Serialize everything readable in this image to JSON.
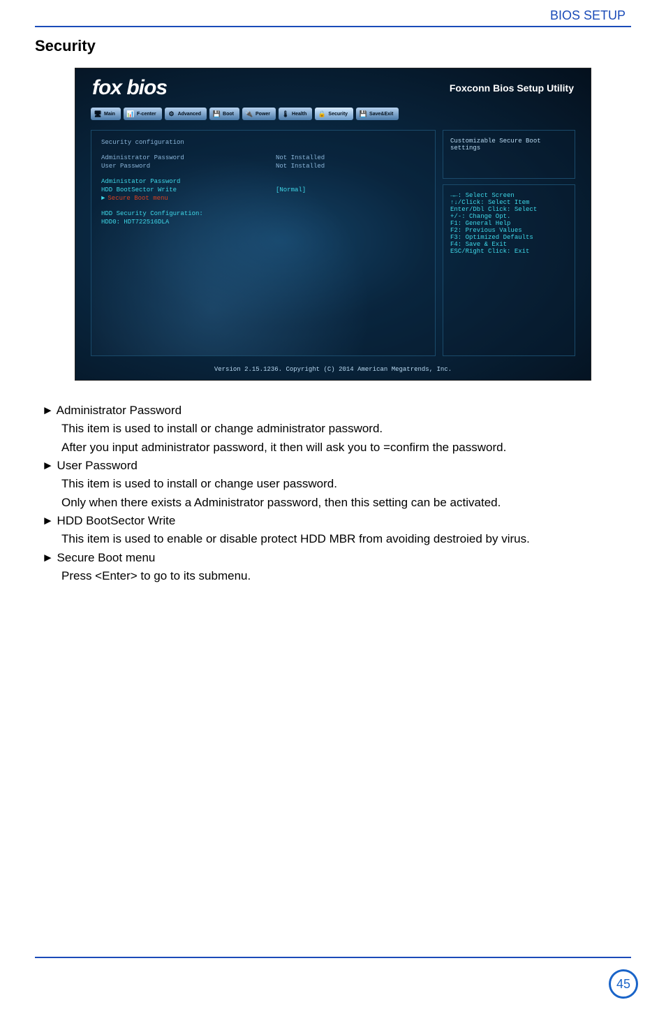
{
  "header_link": "BIOS SETUP",
  "section_title": "Security",
  "bios": {
    "brand": "fox bios",
    "utility_title": "Foxconn Bios Setup Utility",
    "tabs": [
      "Main",
      "F-center",
      "Advanced",
      "Boot",
      "Power",
      "Health",
      "Security",
      "Save&Exit"
    ],
    "active_tab_index": 6,
    "tab_icons": [
      "🖥",
      "📊",
      "⚙",
      "💾",
      "🔌",
      "🌡",
      "🔒",
      "💾"
    ],
    "left": {
      "heading": "Security configuration",
      "rows": [
        {
          "label": "Administrator Password",
          "value": "Not Installed",
          "style": "normal"
        },
        {
          "label": "User Password",
          "value": "Not Installed",
          "style": "normal"
        },
        {
          "label": "",
          "value": "",
          "style": "spacer"
        },
        {
          "label": "Administator Password",
          "value": "",
          "style": "cyan"
        },
        {
          "label": "HDD BootSector Write",
          "value": "[Normal]",
          "style": "cyan"
        },
        {
          "label": "Secure Boot menu",
          "value": "",
          "style": "selected",
          "prefix": "►"
        },
        {
          "label": "",
          "value": "",
          "style": "spacer"
        },
        {
          "label": "HDD Security Configuration:",
          "value": "",
          "style": "cyan"
        },
        {
          "label": "HDD0: HDT722516DLA",
          "value": "",
          "style": "cyan"
        }
      ]
    },
    "right": {
      "help_text": "Customizable Secure Boot settings",
      "nav": [
        {
          "text": "→←: Select Screen",
          "cls": "cyan"
        },
        {
          "text": "↑↓/Click: Select Item",
          "cls": "cyan"
        },
        {
          "text": "Enter/Dbl Click: Select",
          "cls": "cyan"
        },
        {
          "text": "+/-: Change Opt.",
          "cls": "cyan"
        },
        {
          "text": "F1: General Help",
          "cls": "cyan"
        },
        {
          "text": "F2: Previous Values",
          "cls": "cyan"
        },
        {
          "text": "F3: Optimized Defaults",
          "cls": "cyan"
        },
        {
          "text": "F4: Save & Exit",
          "cls": "cyan"
        },
        {
          "text": "ESC/Right Click: Exit",
          "cls": "cyan"
        }
      ]
    },
    "footer": "Version 2.15.1236. Copyright (C) 2014 American Megatrends, Inc."
  },
  "content": {
    "items": [
      {
        "title": "► Administrator Password",
        "lines": [
          "This item is used to install or change administrator password.",
          "After you input administrator password, it then will ask you to =confirm the password."
        ]
      },
      {
        "title": "► User Password",
        "lines": [
          "This item is used to install or change user password.",
          "Only when there exists a Administrator password, then this setting can be activated."
        ]
      },
      {
        "title": "► HDD BootSector Write",
        "lines": [
          "This item is used to enable or disable protect HDD MBR from avoiding destroied by virus."
        ]
      },
      {
        "title": "► Secure Boot menu",
        "lines": [
          "Press <Enter> to go to its submenu."
        ]
      }
    ]
  },
  "page_number": "45",
  "colors": {
    "link_blue": "#1a4bb8",
    "badge_blue": "#1a64c8"
  }
}
